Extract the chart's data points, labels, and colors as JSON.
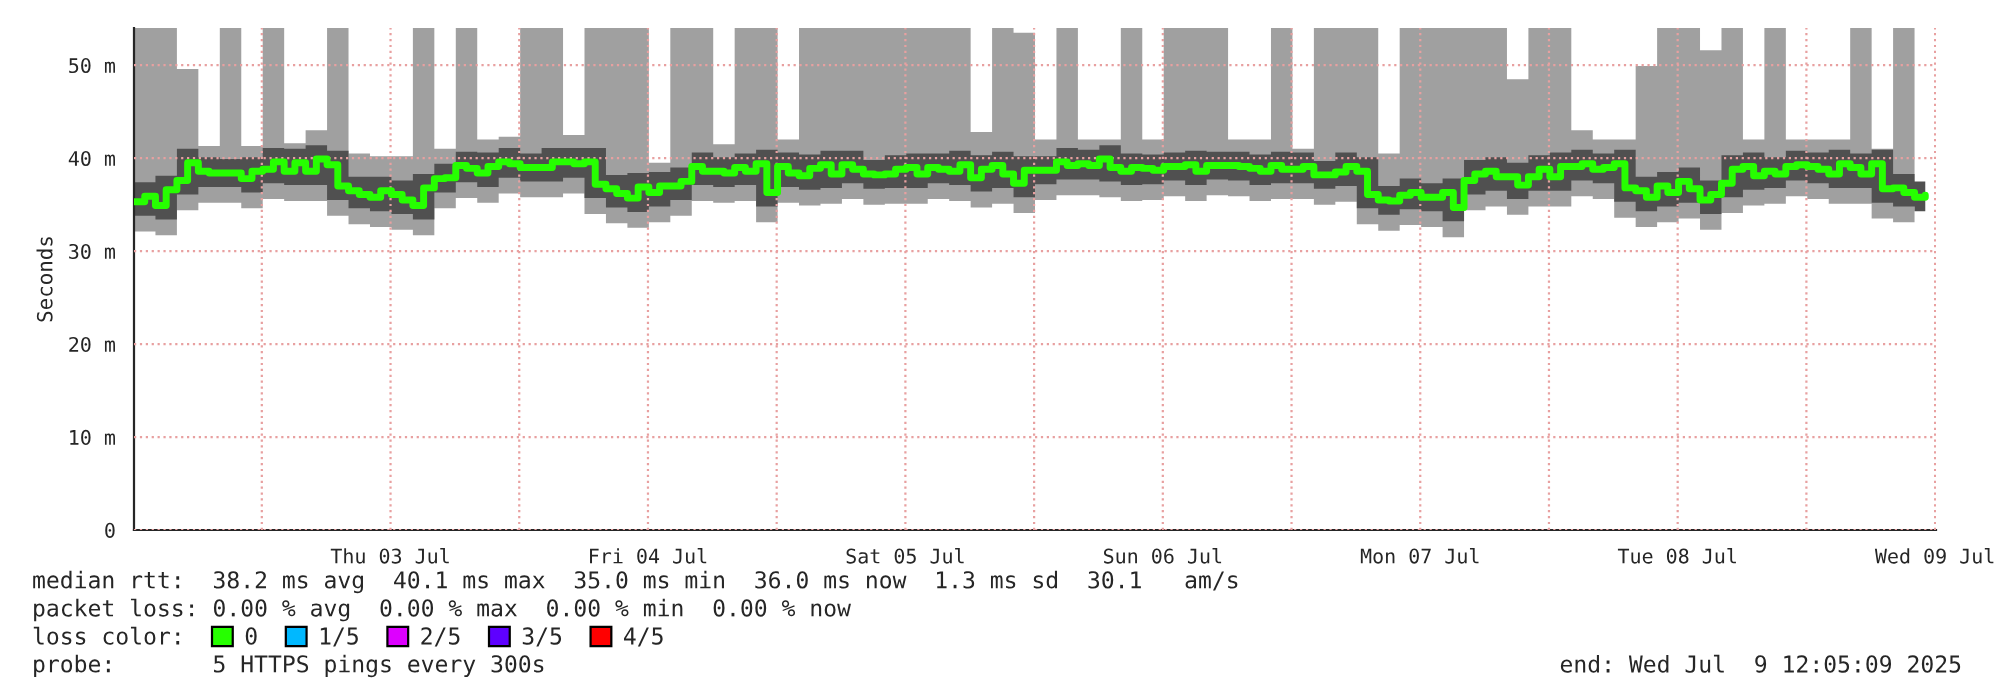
{
  "chart_data": {
    "type": "step",
    "ylabel": "Seconds",
    "x": [
      "2025-07-02T12:05",
      "2025-07-02T13:05",
      "2025-07-02T14:05",
      "2025-07-02T15:05",
      "2025-07-02T16:05",
      "2025-07-02T17:05",
      "2025-07-02T18:05",
      "2025-07-02T19:05",
      "2025-07-02T20:05",
      "2025-07-02T21:05",
      "2025-07-02T22:05",
      "2025-07-02T23:05",
      "2025-07-03T00:05",
      "2025-07-03T01:05",
      "2025-07-03T02:05",
      "2025-07-03T03:05",
      "2025-07-03T04:05",
      "2025-07-03T05:05",
      "2025-07-03T06:05",
      "2025-07-03T07:05",
      "2025-07-03T08:05",
      "2025-07-03T09:05",
      "2025-07-03T10:05",
      "2025-07-03T11:05",
      "2025-07-03T12:05",
      "2025-07-03T13:05",
      "2025-07-03T14:05",
      "2025-07-03T15:05",
      "2025-07-03T16:05",
      "2025-07-03T17:05",
      "2025-07-03T18:05",
      "2025-07-03T19:05",
      "2025-07-03T20:05",
      "2025-07-03T21:05",
      "2025-07-03T22:05",
      "2025-07-03T23:05",
      "2025-07-04T00:05",
      "2025-07-04T01:05",
      "2025-07-04T02:05",
      "2025-07-04T03:05",
      "2025-07-04T04:05",
      "2025-07-04T05:05",
      "2025-07-04T06:05",
      "2025-07-04T07:05",
      "2025-07-04T08:05",
      "2025-07-04T09:05",
      "2025-07-04T10:05",
      "2025-07-04T11:05",
      "2025-07-04T12:05",
      "2025-07-04T13:05",
      "2025-07-04T14:05",
      "2025-07-04T15:05",
      "2025-07-04T16:05",
      "2025-07-04T17:05",
      "2025-07-04T18:05",
      "2025-07-04T19:05",
      "2025-07-04T20:05",
      "2025-07-04T21:05",
      "2025-07-04T22:05",
      "2025-07-04T23:05",
      "2025-07-05T00:05",
      "2025-07-05T01:05",
      "2025-07-05T02:05",
      "2025-07-05T03:05",
      "2025-07-05T04:05",
      "2025-07-05T05:05",
      "2025-07-05T06:05",
      "2025-07-05T07:05",
      "2025-07-05T08:05",
      "2025-07-05T09:05",
      "2025-07-05T10:05",
      "2025-07-05T11:05",
      "2025-07-05T12:05",
      "2025-07-05T13:05",
      "2025-07-05T14:05",
      "2025-07-05T15:05",
      "2025-07-05T16:05",
      "2025-07-05T17:05",
      "2025-07-05T18:05",
      "2025-07-05T19:05",
      "2025-07-05T20:05",
      "2025-07-05T21:05",
      "2025-07-05T22:05",
      "2025-07-05T23:05",
      "2025-07-06T00:05",
      "2025-07-06T01:05",
      "2025-07-06T02:05",
      "2025-07-06T03:05",
      "2025-07-06T04:05",
      "2025-07-06T05:05",
      "2025-07-06T06:05",
      "2025-07-06T07:05",
      "2025-07-06T08:05",
      "2025-07-06T09:05",
      "2025-07-06T10:05",
      "2025-07-06T11:05",
      "2025-07-06T12:05",
      "2025-07-06T13:05",
      "2025-07-06T14:05",
      "2025-07-06T15:05",
      "2025-07-06T16:05",
      "2025-07-06T17:05",
      "2025-07-06T18:05",
      "2025-07-06T19:05",
      "2025-07-06T20:05",
      "2025-07-06T21:05",
      "2025-07-06T22:05",
      "2025-07-06T23:05",
      "2025-07-07T00:05",
      "2025-07-07T01:05",
      "2025-07-07T02:05",
      "2025-07-07T03:05",
      "2025-07-07T04:05",
      "2025-07-07T05:05",
      "2025-07-07T06:05",
      "2025-07-07T07:05",
      "2025-07-07T08:05",
      "2025-07-07T09:05",
      "2025-07-07T10:05",
      "2025-07-07T11:05",
      "2025-07-07T12:05",
      "2025-07-07T13:05",
      "2025-07-07T14:05",
      "2025-07-07T15:05",
      "2025-07-07T16:05",
      "2025-07-07T17:05",
      "2025-07-07T18:05",
      "2025-07-07T19:05",
      "2025-07-07T20:05",
      "2025-07-07T21:05",
      "2025-07-07T22:05",
      "2025-07-07T23:05",
      "2025-07-08T00:05",
      "2025-07-08T01:05",
      "2025-07-08T02:05",
      "2025-07-08T03:05",
      "2025-07-08T04:05",
      "2025-07-08T05:05",
      "2025-07-08T06:05",
      "2025-07-08T07:05",
      "2025-07-08T08:05",
      "2025-07-08T09:05",
      "2025-07-08T10:05",
      "2025-07-08T11:05",
      "2025-07-08T12:05",
      "2025-07-08T13:05",
      "2025-07-08T14:05",
      "2025-07-08T15:05",
      "2025-07-08T16:05",
      "2025-07-08T17:05",
      "2025-07-08T18:05",
      "2025-07-08T19:05",
      "2025-07-08T20:05",
      "2025-07-08T21:05",
      "2025-07-08T22:05",
      "2025-07-08T23:05",
      "2025-07-09T00:05",
      "2025-07-09T01:05",
      "2025-07-09T02:05",
      "2025-07-09T03:05",
      "2025-07-09T04:05",
      "2025-07-09T05:05",
      "2025-07-09T06:05",
      "2025-07-09T07:05",
      "2025-07-09T08:05",
      "2025-07-09T09:05",
      "2025-07-09T10:05",
      "2025-07-09T11:05"
    ],
    "series": [
      {
        "type": "step",
        "color": "#a0a0a0",
        "x": [
          "2025-07-02T12:05",
          "2025-07-02T14:05",
          "2025-07-02T16:05",
          "2025-07-02T18:05",
          "2025-07-02T20:05",
          "2025-07-02T22:05",
          "2025-07-03T00:05",
          "2025-07-03T02:05",
          "2025-07-03T04:05",
          "2025-07-03T06:05",
          "2025-07-03T08:05",
          "2025-07-03T10:05",
          "2025-07-03T12:05",
          "2025-07-03T14:05",
          "2025-07-03T16:05",
          "2025-07-03T18:05",
          "2025-07-03T20:05",
          "2025-07-03T22:05",
          "2025-07-04T00:05",
          "2025-07-04T02:05",
          "2025-07-04T04:05",
          "2025-07-04T06:05",
          "2025-07-04T08:05",
          "2025-07-04T10:05",
          "2025-07-04T12:05",
          "2025-07-04T14:05",
          "2025-07-04T16:05",
          "2025-07-04T18:05",
          "2025-07-04T20:05",
          "2025-07-04T22:05",
          "2025-07-05T00:05",
          "2025-07-05T02:05",
          "2025-07-05T04:05",
          "2025-07-05T06:05",
          "2025-07-05T08:05",
          "2025-07-05T10:05",
          "2025-07-05T12:05",
          "2025-07-05T14:05",
          "2025-07-05T16:05",
          "2025-07-05T18:05",
          "2025-07-05T20:05",
          "2025-07-05T22:05",
          "2025-07-06T00:05",
          "2025-07-06T02:05",
          "2025-07-06T04:05",
          "2025-07-06T06:05",
          "2025-07-06T08:05",
          "2025-07-06T10:05",
          "2025-07-06T12:05",
          "2025-07-06T14:05",
          "2025-07-06T16:05",
          "2025-07-06T18:05",
          "2025-07-06T20:05",
          "2025-07-06T22:05",
          "2025-07-07T00:05",
          "2025-07-07T02:05",
          "2025-07-07T04:05",
          "2025-07-07T06:05",
          "2025-07-07T08:05",
          "2025-07-07T10:05",
          "2025-07-07T12:05",
          "2025-07-07T14:05",
          "2025-07-07T16:05",
          "2025-07-07T18:05",
          "2025-07-07T20:05",
          "2025-07-07T22:05",
          "2025-07-08T00:05",
          "2025-07-08T02:05",
          "2025-07-08T04:05",
          "2025-07-08T06:05",
          "2025-07-08T08:05",
          "2025-07-08T10:05",
          "2025-07-08T12:05",
          "2025-07-08T14:05",
          "2025-07-08T16:05",
          "2025-07-08T18:05",
          "2025-07-08T20:05",
          "2025-07-08T22:05",
          "2025-07-09T00:05",
          "2025-07-09T02:05",
          "2025-07-09T04:05",
          "2025-07-09T06:05",
          "2025-07-09T08:05",
          "2025-07-09T10:05"
        ],
        "values": [
          null,
          null,
          null,
          null,
          null,
          null,
          null,
          null,
          null,
          null,
          null,
          null,
          null,
          null,
          null,
          null,
          null,
          null,
          null,
          null,
          null,
          null,
          null,
          null,
          null,
          null,
          null,
          null,
          null,
          null,
          null,
          null,
          null,
          null,
          null,
          null,
          null,
          null,
          null,
          null,
          null,
          null,
          null,
          null,
          null,
          null,
          null,
          null,
          null,
          null,
          null,
          null,
          null,
          null,
          null,
          null,
          null,
          null,
          null,
          null,
          null,
          null,
          null,
          null,
          null,
          null,
          null,
          null,
          null,
          null,
          null,
          null,
          null,
          null,
          null,
          null,
          null,
          null,
          null,
          null,
          null,
          null,
          null,
          null
        ],
        "lower": [
          32.1,
          31.7,
          34.4,
          35.2,
          35.2,
          34.6,
          35.6,
          35.4,
          35.4,
          33.8,
          32.9,
          32.6,
          32.3,
          31.7,
          34.6,
          35.7,
          35.2,
          36.2,
          35.8,
          35.8,
          36.2,
          34.0,
          33.0,
          32.5,
          33.1,
          33.8,
          35.4,
          35.2,
          35.4,
          33.1,
          35.2,
          34.9,
          35.1,
          35.6,
          35.0,
          35.1,
          35.1,
          35.6,
          35.4,
          34.7,
          35.1,
          34.1,
          35.5,
          36.0,
          36.0,
          35.8,
          35.4,
          35.5,
          35.9,
          35.4,
          36.0,
          35.9,
          35.4,
          35.6,
          35.6,
          35.0,
          35.3,
          32.9,
          32.2,
          32.8,
          32.6,
          31.5,
          34.4,
          34.8,
          33.9,
          34.8,
          34.8,
          35.9,
          35.6,
          33.6,
          32.6,
          33.1,
          33.5,
          32.3,
          34.1,
          34.9,
          35.1,
          35.9,
          35.6,
          35.1,
          35.1,
          33.5,
          33.1,
          32.6
        ],
        "upper": [
          54,
          54,
          49.6,
          41.3,
          54,
          41.3,
          54,
          41.6,
          43,
          54,
          40.5,
          40.2,
          40.2,
          54,
          41,
          54,
          42,
          42.3,
          54,
          54,
          42.5,
          54,
          54,
          54,
          39.5,
          54,
          54,
          41.5,
          54,
          54,
          42,
          54,
          54,
          54,
          54,
          54,
          54,
          54,
          54,
          42.8,
          54,
          53.5,
          42,
          54,
          42,
          42,
          54,
          42,
          54,
          54,
          54,
          42,
          42,
          54,
          41,
          54,
          54,
          54,
          40.5,
          54,
          54,
          54,
          54,
          54,
          48.5,
          54,
          54,
          43,
          42,
          42,
          49.9,
          54,
          54,
          51.6,
          54,
          42,
          54,
          42,
          42,
          42,
          54,
          41,
          54,
          54
        ]
      },
      {
        "name": "0",
        "color": "#26ff00",
        "values": [
          35.3,
          35.9,
          34.9,
          36.6,
          37.6,
          39.5,
          38.6,
          38.4,
          38.4,
          38.4,
          37.8,
          38.6,
          38.8,
          39.6,
          38.6,
          39.5,
          38.6,
          39.9,
          39.3,
          37.0,
          36.5,
          36.1,
          35.8,
          36.5,
          36.1,
          35.5,
          34.9,
          36.8,
          37.8,
          37.9,
          39.2,
          38.9,
          38.4,
          39.1,
          39.6,
          39.4,
          39.0,
          39.0,
          39.0,
          39.6,
          39.6,
          39.4,
          39.6,
          37.2,
          36.7,
          36.2,
          35.7,
          36.9,
          36.3,
          37.0,
          37.0,
          37.5,
          39.1,
          38.6,
          38.6,
          38.4,
          39.0,
          38.6,
          39.4,
          36.3,
          39.1,
          38.4,
          38.1,
          38.9,
          39.3,
          38.3,
          39.3,
          38.8,
          38.3,
          38.2,
          38.3,
          38.8,
          39.0,
          38.3,
          39.0,
          38.8,
          38.6,
          39.3,
          37.9,
          38.8,
          39.2,
          38.3,
          37.3,
          38.7,
          38.7,
          38.7,
          39.6,
          39.2,
          39.4,
          39.2,
          39.9,
          39.0,
          38.6,
          39.0,
          38.9,
          38.7,
          39.1,
          39.1,
          39.3,
          38.6,
          39.2,
          39.2,
          39.2,
          39.1,
          38.9,
          38.6,
          39.2,
          38.8,
          38.8,
          39.1,
          38.2,
          38.2,
          38.5,
          39.1,
          38.6,
          36.1,
          35.5,
          35.4,
          36.0,
          36.3,
          35.8,
          35.8,
          36.3,
          34.7,
          37.6,
          38.3,
          38.6,
          38.0,
          38.0,
          37.1,
          38.0,
          38.8,
          38.0,
          39.1,
          39.1,
          39.4,
          38.8,
          39.0,
          39.4,
          36.8,
          36.5,
          35.8,
          37.0,
          36.3,
          37.5,
          36.7,
          35.5,
          36.1,
          37.3,
          38.8,
          39.1,
          38.1,
          38.6,
          38.3,
          39.1,
          39.3,
          39.1,
          38.8,
          38.3,
          39.4,
          39.0,
          38.3,
          39.4,
          36.7,
          36.8,
          36.3,
          35.8,
          36.0
        ]
      },
      {
        "type": "step",
        "color": "#505050",
        "values": [
          null,
          null,
          null,
          null,
          null,
          null,
          null,
          null,
          null,
          null,
          null,
          null,
          null,
          null,
          null,
          null,
          null,
          null,
          null,
          null,
          null,
          null,
          null,
          null,
          null,
          null,
          null,
          null,
          null,
          null,
          null,
          null,
          null,
          null,
          null,
          null,
          null,
          null,
          null,
          null,
          null,
          null,
          null,
          null,
          null,
          null,
          null,
          null,
          null,
          null,
          null,
          null,
          null,
          null,
          null,
          null,
          null,
          null,
          null,
          null,
          null,
          null,
          null,
          null,
          null,
          null,
          null,
          null,
          null,
          null,
          null,
          null,
          null,
          null,
          null,
          null,
          null,
          null,
          null,
          null,
          null,
          null,
          null,
          null,
          null,
          null,
          null,
          null,
          null,
          null,
          null,
          null,
          null,
          null,
          null,
          null,
          null,
          null,
          null,
          null,
          null,
          null,
          null,
          null,
          null,
          null,
          null,
          null,
          null,
          null,
          null,
          null,
          null,
          null,
          null,
          null,
          null,
          null,
          null,
          null,
          null,
          null,
          null,
          null,
          null,
          null,
          null,
          null,
          null,
          null,
          null,
          null,
          null,
          null,
          null,
          null,
          null,
          null,
          null,
          null,
          null,
          null,
          null,
          null,
          null,
          null,
          null,
          null,
          null,
          null,
          null,
          null,
          null,
          null,
          null,
          null,
          null,
          null,
          null,
          null,
          null,
          null,
          null,
          null,
          null,
          null,
          null,
          null
        ],
        "lower": [
          33.8,
          33.8,
          33.4,
          33.4,
          36.1,
          36.1,
          36.9,
          36.9,
          36.9,
          36.9,
          36.3,
          36.3,
          37.3,
          37.3,
          37.1,
          37.1,
          37.1,
          37.1,
          35.5,
          35.5,
          34.6,
          34.6,
          34.3,
          34.3,
          34.0,
          34.0,
          33.4,
          33.4,
          36.3,
          36.3,
          37.4,
          37.4,
          36.9,
          36.9,
          37.9,
          37.9,
          37.5,
          37.5,
          37.5,
          37.5,
          37.9,
          37.9,
          35.7,
          35.7,
          34.7,
          34.7,
          34.2,
          34.2,
          34.8,
          34.8,
          35.5,
          35.5,
          37.1,
          37.1,
          36.9,
          36.9,
          37.1,
          37.1,
          34.8,
          34.8,
          36.9,
          36.9,
          36.6,
          36.6,
          36.8,
          36.8,
          37.3,
          37.3,
          36.7,
          36.7,
          36.8,
          36.8,
          36.8,
          36.8,
          37.3,
          37.3,
          37.1,
          37.1,
          36.4,
          36.4,
          36.8,
          36.8,
          35.8,
          35.8,
          37.2,
          37.2,
          37.7,
          37.7,
          37.7,
          37.7,
          37.5,
          37.5,
          37.1,
          37.1,
          37.2,
          37.2,
          37.6,
          37.6,
          37.1,
          37.1,
          37.7,
          37.7,
          37.6,
          37.6,
          37.1,
          37.1,
          37.3,
          37.3,
          37.3,
          37.3,
          36.7,
          36.7,
          37.0,
          37.0,
          34.6,
          34.6,
          33.9,
          33.9,
          34.5,
          34.5,
          34.3,
          34.3,
          33.2,
          33.2,
          36.1,
          36.1,
          36.5,
          36.5,
          35.6,
          35.6,
          36.5,
          36.5,
          36.5,
          36.5,
          37.6,
          37.6,
          37.3,
          37.3,
          35.3,
          35.3,
          34.3,
          34.3,
          34.8,
          34.8,
          35.2,
          35.2,
          34.0,
          34.0,
          35.8,
          35.8,
          36.6,
          36.6,
          36.8,
          36.8,
          37.6,
          37.6,
          37.3,
          37.3,
          36.8,
          36.8,
          36.8,
          36.8,
          35.2,
          35.2,
          34.8,
          34.8,
          34.3,
          34.3
        ],
        "upper": [
          37.4,
          37.4,
          38.1,
          38.1,
          41.0,
          41.0,
          40.1,
          40.1,
          39.9,
          39.9,
          40.1,
          40.1,
          41.1,
          41.1,
          41.0,
          41.0,
          41.4,
          41.4,
          40.8,
          40.8,
          38.0,
          38.0,
          38.0,
          38.0,
          37.6,
          37.6,
          38.3,
          38.3,
          39.4,
          39.4,
          40.7,
          40.7,
          40.6,
          40.6,
          41.1,
          41.1,
          40.5,
          40.5,
          41.1,
          41.1,
          41.1,
          41.1,
          41.1,
          41.1,
          38.2,
          38.2,
          38.4,
          38.4,
          38.5,
          38.5,
          39.0,
          39.0,
          40.6,
          40.6,
          40.1,
          40.1,
          40.5,
          40.5,
          40.9,
          40.9,
          40.6,
          40.6,
          40.4,
          40.4,
          40.8,
          40.8,
          40.8,
          40.8,
          39.8,
          39.8,
          40.3,
          40.3,
          40.5,
          40.5,
          40.5,
          40.5,
          40.8,
          40.8,
          40.3,
          40.3,
          40.7,
          40.7,
          40.2,
          40.2,
          40.2,
          40.2,
          41.1,
          41.1,
          40.9,
          40.9,
          41.4,
          41.4,
          40.5,
          40.5,
          40.4,
          40.4,
          40.6,
          40.6,
          40.8,
          40.8,
          40.7,
          40.7,
          40.7,
          40.7,
          40.4,
          40.4,
          40.7,
          40.7,
          40.6,
          40.6,
          39.7,
          39.7,
          40.6,
          40.6,
          40.1,
          40.1,
          37.0,
          37.0,
          37.8,
          37.8,
          37.3,
          37.3,
          37.8,
          37.8,
          39.8,
          39.8,
          40.1,
          40.1,
          39.5,
          39.5,
          40.3,
          40.3,
          40.6,
          40.6,
          40.9,
          40.9,
          40.5,
          40.5,
          40.9,
          40.9,
          38.0,
          38.0,
          38.5,
          38.5,
          39.0,
          39.0,
          37.6,
          37.6,
          40.3,
          40.3,
          40.6,
          40.6,
          40.1,
          40.1,
          40.8,
          40.8,
          40.6,
          40.6,
          40.9,
          40.9,
          40.5,
          40.5,
          40.9,
          40.9,
          38.3,
          38.3,
          37.5,
          37.5
        ]
      },
      {
        "name": "1/5",
        "color": "#00b8ff",
        "values": [
          null,
          null,
          null,
          null,
          null,
          null,
          null,
          null,
          null,
          null,
          null,
          null,
          null,
          null,
          null,
          null,
          null,
          null,
          null,
          null,
          null,
          null,
          null,
          null,
          null,
          null,
          null,
          null,
          null,
          null,
          null,
          null,
          null,
          null,
          null,
          null,
          null,
          null,
          null,
          null,
          null,
          null,
          null,
          null,
          null,
          null,
          null,
          null,
          null,
          null,
          null,
          null,
          null,
          null,
          null,
          null,
          null,
          null,
          null,
          null,
          null,
          null,
          null,
          null,
          null,
          null,
          null,
          null,
          null,
          null,
          null,
          null,
          null,
          null,
          null,
          null,
          null,
          null,
          null,
          null,
          null,
          null,
          null,
          null,
          null,
          null,
          null,
          null,
          null,
          null,
          null,
          null,
          null,
          null,
          null,
          null,
          null,
          null,
          null,
          null,
          null,
          null,
          null,
          null,
          null,
          null,
          null,
          null,
          null,
          null,
          null,
          null,
          null,
          null,
          null,
          null,
          null,
          null,
          null,
          null,
          null,
          null,
          null,
          null,
          null,
          null,
          null,
          null,
          null,
          null,
          null,
          null,
          null,
          null,
          null,
          null,
          null,
          null,
          null,
          null,
          null,
          null,
          null,
          null,
          null,
          null,
          null,
          null,
          null,
          null,
          null,
          null,
          null,
          null,
          null,
          null,
          null,
          null,
          null,
          null,
          null,
          null,
          null,
          null,
          null,
          null,
          null,
          null
        ]
      },
      {
        "name": "2/5",
        "color": "#dd00ff",
        "values": [
          null,
          null,
          null,
          null,
          null,
          null,
          null,
          null,
          null,
          null,
          null,
          null,
          null,
          null,
          null,
          null,
          null,
          null,
          null,
          null,
          null,
          null,
          null,
          null,
          null,
          null,
          null,
          null,
          null,
          null,
          null,
          null,
          null,
          null,
          null,
          null,
          null,
          null,
          null,
          null,
          null,
          null,
          null,
          null,
          null,
          null,
          null,
          null,
          null,
          null,
          null,
          null,
          null,
          null,
          null,
          null,
          null,
          null,
          null,
          null,
          null,
          null,
          null,
          null,
          null,
          null,
          null,
          null,
          null,
          null,
          null,
          null,
          null,
          null,
          null,
          null,
          null,
          null,
          null,
          null,
          null,
          null,
          null,
          null,
          null,
          null,
          null,
          null,
          null,
          null,
          null,
          null,
          null,
          null,
          null,
          null,
          null,
          null,
          null,
          null,
          null,
          null,
          null,
          null,
          null,
          null,
          null,
          null,
          null,
          null,
          null,
          null,
          null,
          null,
          null,
          null,
          null,
          null,
          null,
          null,
          null,
          null,
          null,
          null,
          null,
          null,
          null,
          null,
          null,
          null,
          null,
          null,
          null,
          null,
          null,
          null,
          null,
          null,
          null,
          null,
          null,
          null,
          null,
          null,
          null,
          null,
          null,
          null,
          null,
          null,
          null,
          null,
          null,
          null,
          null,
          null,
          null,
          null,
          null,
          null,
          null,
          null,
          null,
          null,
          null,
          null,
          null,
          null
        ]
      },
      {
        "name": "3/5",
        "color": "#5e00ff",
        "values": [
          null,
          null,
          null,
          null,
          null,
          null,
          null,
          null,
          null,
          null,
          null,
          null,
          null,
          null,
          null,
          null,
          null,
          null,
          null,
          null,
          null,
          null,
          null,
          null,
          null,
          null,
          null,
          null,
          null,
          null,
          null,
          null,
          null,
          null,
          null,
          null,
          null,
          null,
          null,
          null,
          null,
          null,
          null,
          null,
          null,
          null,
          null,
          null,
          null,
          null,
          null,
          null,
          null,
          null,
          null,
          null,
          null,
          null,
          null,
          null,
          null,
          null,
          null,
          null,
          null,
          null,
          null,
          null,
          null,
          null,
          null,
          null,
          null,
          null,
          null,
          null,
          null,
          null,
          null,
          null,
          null,
          null,
          null,
          null,
          null,
          null,
          null,
          null,
          null,
          null,
          null,
          null,
          null,
          null,
          null,
          null,
          null,
          null,
          null,
          null,
          null,
          null,
          null,
          null,
          null,
          null,
          null,
          null,
          null,
          null,
          null,
          null,
          null,
          null,
          null,
          null,
          null,
          null,
          null,
          null,
          null,
          null,
          null,
          null,
          null,
          null,
          null,
          null,
          null,
          null,
          null,
          null,
          null,
          null,
          null,
          null,
          null,
          null,
          null,
          null,
          null,
          null,
          null,
          null,
          null,
          null,
          null,
          null,
          null,
          null,
          null,
          null,
          null,
          null,
          null,
          null,
          null,
          null,
          null,
          null,
          null,
          null,
          null,
          null,
          null,
          null,
          null,
          null
        ]
      },
      {
        "name": "4/5",
        "color": "#ff0000",
        "values": [
          null,
          null,
          null,
          null,
          null,
          null,
          null,
          null,
          null,
          null,
          null,
          null,
          null,
          null,
          null,
          null,
          null,
          null,
          null,
          null,
          null,
          null,
          null,
          null,
          null,
          null,
          null,
          null,
          null,
          null,
          null,
          null,
          null,
          null,
          null,
          null,
          null,
          null,
          null,
          null,
          null,
          null,
          null,
          null,
          null,
          null,
          null,
          null,
          null,
          null,
          null,
          null,
          null,
          null,
          null,
          null,
          null,
          null,
          null,
          null,
          null,
          null,
          null,
          null,
          null,
          null,
          null,
          null,
          null,
          null,
          null,
          null,
          null,
          null,
          null,
          null,
          null,
          null,
          null,
          null,
          null,
          null,
          null,
          null,
          null,
          null,
          null,
          null,
          null,
          null,
          null,
          null,
          null,
          null,
          null,
          null,
          null,
          null,
          null,
          null,
          null,
          null,
          null,
          null,
          null,
          null,
          null,
          null,
          null,
          null,
          null,
          null,
          null,
          null,
          null,
          null,
          null,
          null,
          null,
          null,
          null,
          null,
          null,
          null,
          null,
          null,
          null,
          null,
          null,
          null,
          null,
          null,
          null,
          null,
          null,
          null,
          null,
          null,
          null,
          null,
          null,
          null,
          null,
          null,
          null,
          null,
          null,
          null,
          null,
          null,
          null,
          null,
          null,
          null,
          null,
          null,
          null,
          null,
          null,
          null,
          null,
          null,
          null,
          null,
          null,
          null,
          null,
          null
        ]
      }
    ],
    "legend_title": "loss color:",
    "legend": "bottom left",
    "xlim": [
      "2025-07-02T12:05",
      "2025-07-09T12:05"
    ],
    "xticks": [
      {
        "value": "2025-07-03T00:00",
        "label": null
      },
      {
        "value": "2025-07-03T12:00",
        "label": "Thu 03 Jul"
      },
      {
        "value": "2025-07-04T00:00",
        "label": null
      },
      {
        "value": "2025-07-04T12:00",
        "label": "Fri 04 Jul"
      },
      {
        "value": "2025-07-05T00:00",
        "label": null
      },
      {
        "value": "2025-07-05T12:00",
        "label": "Sat 05 Jul"
      },
      {
        "value": "2025-07-06T00:00",
        "label": null
      },
      {
        "value": "2025-07-06T12:00",
        "label": "Sun 06 Jul"
      },
      {
        "value": "2025-07-07T00:00",
        "label": null
      },
      {
        "value": "2025-07-07T12:00",
        "label": "Mon 07 Jul"
      },
      {
        "value": "2025-07-08T00:00",
        "label": null
      },
      {
        "value": "2025-07-08T12:00",
        "label": "Tue 08 Jul"
      },
      {
        "value": "2025-07-09T00:00",
        "label": null
      },
      {
        "value": "2025-07-09T12:00",
        "label": "Wed 09 Jul"
      }
    ],
    "ylim": [
      0,
      54
    ],
    "yticks": [
      0,
      {
        "value": 10,
        "label": "10 m"
      },
      {
        "value": 20,
        "label": "20 m"
      },
      {
        "value": 30,
        "label": "30 m"
      },
      {
        "value": 40,
        "label": "40 m"
      },
      {
        "value": 50,
        "label": "50 m"
      }
    ],
    "grid": true,
    "annotations": [
      "median rtt:  38.2 ms avg  40.1 ms max  35.0 ms min  36.0 ms now  1.3 ms sd  30.1   am/s",
      "packet loss: 0.00 % avg  0.00 % max  0.00 % min  0.00 % now",
      "probe:       5 HTTPS pings every 300s",
      "end: Wed Jul  9 12:05:09 2025"
    ]
  }
}
